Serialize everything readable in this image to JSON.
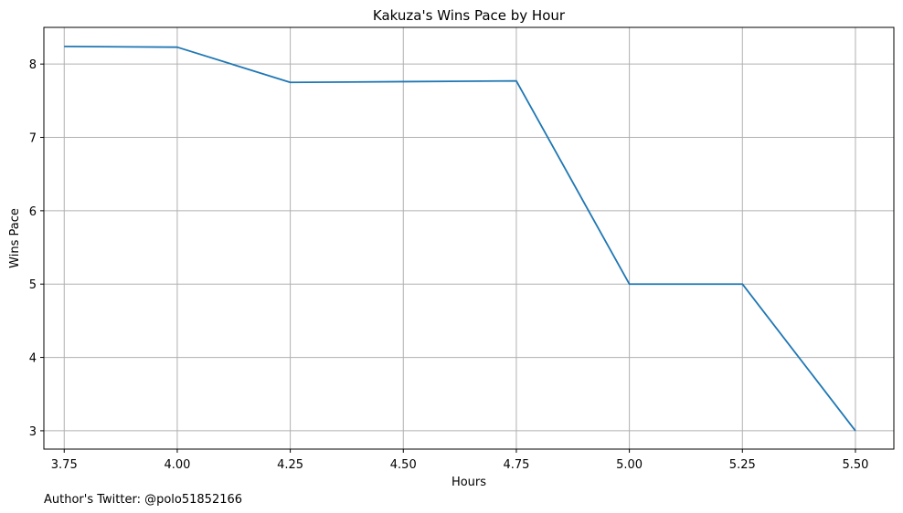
{
  "chart_data": {
    "type": "line",
    "title": "Kakuza's Wins Pace by Hour",
    "xlabel": "Hours",
    "ylabel": "Wins Pace",
    "x": [
      3.75,
      4.0,
      4.25,
      4.5,
      4.75,
      5.0,
      5.25,
      5.5
    ],
    "series": [
      {
        "values": [
          8.24,
          8.23,
          7.75,
          7.76,
          7.77,
          5.0,
          5.0,
          3.0
        ],
        "color": "#1f77b4"
      }
    ],
    "xlim": [
      3.705,
      5.585
    ],
    "ylim": [
      2.75,
      8.5
    ],
    "xticks": [
      3.75,
      4.0,
      4.25,
      4.5,
      4.75,
      5.0,
      5.25,
      5.5
    ],
    "xtick_labels": [
      "3.75",
      "4.00",
      "4.25",
      "4.50",
      "4.75",
      "5.00",
      "5.25",
      "5.50"
    ],
    "yticks": [
      3,
      4,
      5,
      6,
      7,
      8
    ],
    "ytick_labels": [
      "3",
      "4",
      "5",
      "6",
      "7",
      "8"
    ],
    "grid": true,
    "grid_color": "#b0b0b0"
  },
  "footnote": "Author's Twitter: @polo51852166"
}
